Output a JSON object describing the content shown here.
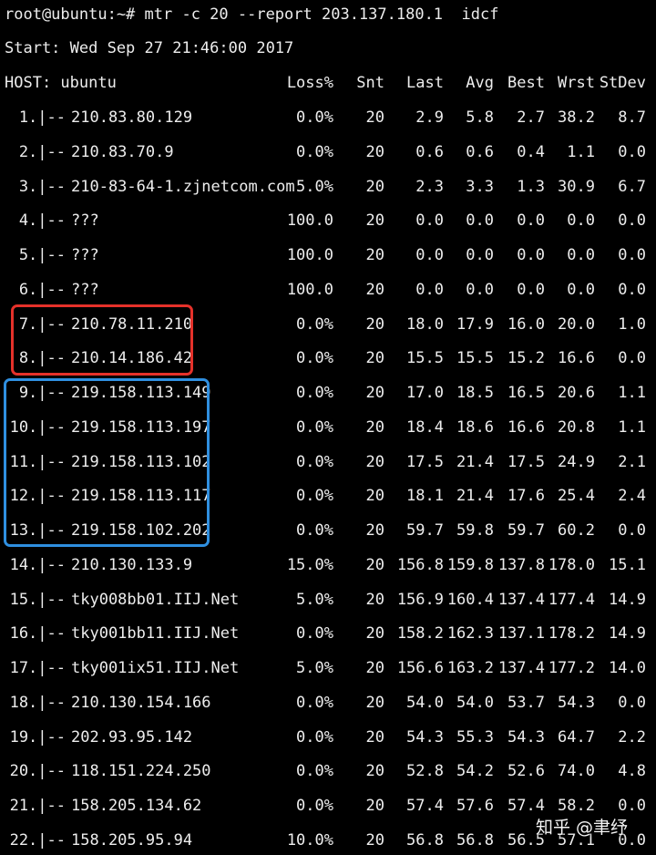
{
  "terminal": {
    "command_line": "root@ubuntu:~# mtr -c 20 --report 203.137.180.1  idcf",
    "start_line": "Start: Wed Sep 27 21:46:00 2017"
  },
  "table": {
    "host_header": "HOST: ubuntu",
    "columns": [
      "Loss%",
      "Snt",
      "Last",
      "Avg",
      "Best",
      "Wrst",
      "StDev"
    ],
    "rows": [
      {
        "hop": "1.|--",
        "host": "210.83.80.129",
        "loss": "0.0%",
        "snt": "20",
        "last": "2.9",
        "avg": "5.8",
        "best": "2.7",
        "wrst": "38.2",
        "stdev": "8.7"
      },
      {
        "hop": "2.|--",
        "host": "210.83.70.9",
        "loss": "0.0%",
        "snt": "20",
        "last": "0.6",
        "avg": "0.6",
        "best": "0.4",
        "wrst": "1.1",
        "stdev": "0.0"
      },
      {
        "hop": "3.|--",
        "host": "210-83-64-1.zjnetcom.com",
        "loss": "5.0%",
        "snt": "20",
        "last": "2.3",
        "avg": "3.3",
        "best": "1.3",
        "wrst": "30.9",
        "stdev": "6.7"
      },
      {
        "hop": "4.|--",
        "host": "???",
        "loss": "100.0",
        "snt": "20",
        "last": "0.0",
        "avg": "0.0",
        "best": "0.0",
        "wrst": "0.0",
        "stdev": "0.0"
      },
      {
        "hop": "5.|--",
        "host": "???",
        "loss": "100.0",
        "snt": "20",
        "last": "0.0",
        "avg": "0.0",
        "best": "0.0",
        "wrst": "0.0",
        "stdev": "0.0"
      },
      {
        "hop": "6.|--",
        "host": "???",
        "loss": "100.0",
        "snt": "20",
        "last": "0.0",
        "avg": "0.0",
        "best": "0.0",
        "wrst": "0.0",
        "stdev": "0.0"
      },
      {
        "hop": "7.|--",
        "host": "210.78.11.210",
        "loss": "0.0%",
        "snt": "20",
        "last": "18.0",
        "avg": "17.9",
        "best": "16.0",
        "wrst": "20.0",
        "stdev": "1.0"
      },
      {
        "hop": "8.|--",
        "host": "210.14.186.42",
        "loss": "0.0%",
        "snt": "20",
        "last": "15.5",
        "avg": "15.5",
        "best": "15.2",
        "wrst": "16.6",
        "stdev": "0.0"
      },
      {
        "hop": "9.|--",
        "host": "219.158.113.149",
        "loss": "0.0%",
        "snt": "20",
        "last": "17.0",
        "avg": "18.5",
        "best": "16.5",
        "wrst": "20.6",
        "stdev": "1.1"
      },
      {
        "hop": "10.|--",
        "host": "219.158.113.197",
        "loss": "0.0%",
        "snt": "20",
        "last": "18.4",
        "avg": "18.6",
        "best": "16.6",
        "wrst": "20.8",
        "stdev": "1.1"
      },
      {
        "hop": "11.|--",
        "host": "219.158.113.102",
        "loss": "0.0%",
        "snt": "20",
        "last": "17.5",
        "avg": "21.4",
        "best": "17.5",
        "wrst": "24.9",
        "stdev": "2.1"
      },
      {
        "hop": "12.|--",
        "host": "219.158.113.117",
        "loss": "0.0%",
        "snt": "20",
        "last": "18.1",
        "avg": "21.4",
        "best": "17.6",
        "wrst": "25.4",
        "stdev": "2.4"
      },
      {
        "hop": "13.|--",
        "host": "219.158.102.202",
        "loss": "0.0%",
        "snt": "20",
        "last": "59.7",
        "avg": "59.8",
        "best": "59.7",
        "wrst": "60.2",
        "stdev": "0.0"
      },
      {
        "hop": "14.|--",
        "host": "210.130.133.9",
        "loss": "15.0%",
        "snt": "20",
        "last": "156.8",
        "avg": "159.8",
        "best": "137.8",
        "wrst": "178.0",
        "stdev": "15.1"
      },
      {
        "hop": "15.|--",
        "host": "tky008bb01.IIJ.Net",
        "loss": "5.0%",
        "snt": "20",
        "last": "156.9",
        "avg": "160.4",
        "best": "137.4",
        "wrst": "177.4",
        "stdev": "14.9"
      },
      {
        "hop": "16.|--",
        "host": "tky001bb11.IIJ.Net",
        "loss": "0.0%",
        "snt": "20",
        "last": "158.2",
        "avg": "162.3",
        "best": "137.1",
        "wrst": "178.2",
        "stdev": "14.9"
      },
      {
        "hop": "17.|--",
        "host": "tky001ix51.IIJ.Net",
        "loss": "5.0%",
        "snt": "20",
        "last": "156.6",
        "avg": "163.2",
        "best": "137.4",
        "wrst": "177.2",
        "stdev": "14.0"
      },
      {
        "hop": "18.|--",
        "host": "210.130.154.166",
        "loss": "0.0%",
        "snt": "20",
        "last": "54.0",
        "avg": "54.0",
        "best": "53.7",
        "wrst": "54.3",
        "stdev": "0.0"
      },
      {
        "hop": "19.|--",
        "host": "202.93.95.142",
        "loss": "0.0%",
        "snt": "20",
        "last": "54.3",
        "avg": "55.3",
        "best": "54.3",
        "wrst": "64.7",
        "stdev": "2.2"
      },
      {
        "hop": "20.|--",
        "host": "118.151.224.250",
        "loss": "0.0%",
        "snt": "20",
        "last": "52.8",
        "avg": "54.2",
        "best": "52.6",
        "wrst": "74.0",
        "stdev": "4.8"
      },
      {
        "hop": "21.|--",
        "host": "158.205.134.62",
        "loss": "0.0%",
        "snt": "20",
        "last": "57.4",
        "avg": "57.6",
        "best": "57.4",
        "wrst": "58.2",
        "stdev": "0.0"
      },
      {
        "hop": "22.|--",
        "host": "158.205.95.94",
        "loss": "10.0%",
        "snt": "20",
        "last": "56.8",
        "avg": "56.8",
        "best": "56.5",
        "wrst": "57.1",
        "stdev": "0.0"
      }
    ]
  },
  "highlights": {
    "red_color": "#e5312a",
    "blue_color": "#2f8fe0"
  },
  "watermark": {
    "text": "知乎 @聿纾"
  }
}
